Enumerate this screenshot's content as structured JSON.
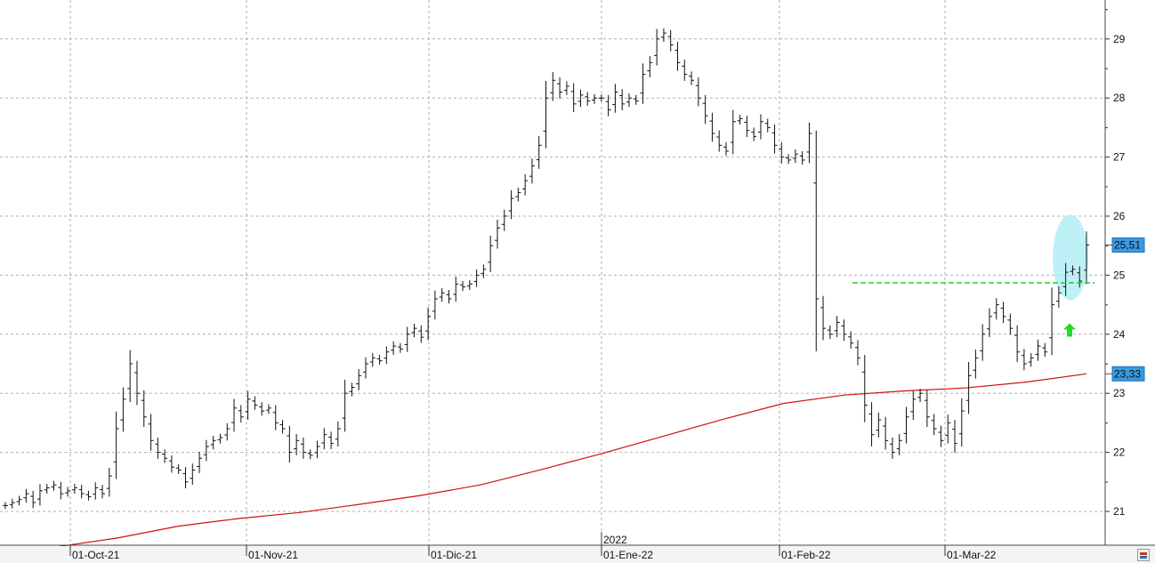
{
  "chart_data": {
    "type": "ohlc",
    "x_labels": [
      "01-Oct-21",
      "01-Nov-21",
      "01-Dic-21",
      "01-Ene-22",
      "01-Feb-22",
      "01-Mar-22"
    ],
    "year_label": "2022",
    "y_ticks": [
      "21",
      "22",
      "23",
      "24",
      "25",
      "26",
      "27",
      "28",
      "29"
    ],
    "ylim": [
      20.5,
      29.5
    ],
    "grid": true,
    "last_price": "25,51",
    "moving_average_price": "23,33",
    "resistance_level": 24.87,
    "colors": {
      "bars": "#111111",
      "moving_average": "#cc1111",
      "resistance": "#22cc22",
      "arrow": "#22dd22",
      "highlight": "#a8ecf4",
      "badge": "#3a9ae0",
      "grid": "#b0b0b0"
    },
    "moving_average": [
      20.4,
      20.55,
      20.75,
      20.88,
      20.98,
      21.12,
      21.27,
      21.45,
      21.71,
      21.98,
      22.27,
      22.56,
      22.83,
      22.97,
      23.04,
      23.09,
      23.19,
      23.33
    ],
    "close": [
      21.1,
      21.15,
      21.2,
      21.3,
      21.15,
      21.35,
      21.4,
      21.45,
      21.3,
      21.35,
      21.4,
      21.3,
      21.25,
      21.4,
      21.3,
      21.6,
      22.4,
      22.9,
      23.5,
      23.0,
      22.6,
      22.2,
      22.0,
      21.9,
      21.75,
      21.7,
      21.5,
      21.7,
      21.9,
      22.1,
      22.2,
      22.25,
      22.4,
      22.75,
      22.6,
      22.9,
      22.8,
      22.7,
      22.75,
      22.5,
      22.4,
      22.0,
      22.2,
      22.0,
      21.95,
      22.1,
      22.3,
      22.15,
      22.4,
      23.0,
      23.1,
      23.3,
      23.5,
      23.6,
      23.55,
      23.7,
      23.8,
      23.75,
      24.0,
      24.1,
      23.95,
      24.3,
      24.6,
      24.7,
      24.6,
      24.85,
      24.8,
      24.85,
      25.0,
      25.1,
      25.5,
      25.8,
      26.0,
      26.3,
      26.4,
      26.6,
      26.85,
      27.2,
      28.0,
      28.3,
      28.1,
      28.2,
      27.9,
      28.05,
      27.95,
      28.0,
      28.0,
      27.8,
      28.1,
      27.9,
      28.0,
      27.95,
      28.4,
      28.6,
      29.0,
      29.1,
      28.9,
      28.6,
      28.4,
      28.3,
      28.0,
      27.7,
      27.4,
      27.2,
      27.1,
      27.6,
      27.65,
      27.45,
      27.35,
      27.6,
      27.5,
      27.2,
      27.0,
      26.95,
      27.05,
      26.95,
      27.4,
      24.6,
      24.1,
      24.0,
      24.2,
      24.0,
      23.85,
      23.6,
      22.8,
      22.3,
      22.55,
      22.2,
      22.0,
      22.2,
      22.6,
      22.9,
      23.0,
      22.6,
      22.4,
      22.2,
      22.5,
      22.15,
      22.7,
      23.3,
      23.6,
      24.0,
      24.3,
      24.5,
      24.3,
      24.1,
      23.7,
      23.5,
      23.6,
      23.8,
      23.7,
      24.5,
      24.7,
      25.05,
      25.1,
      24.9,
      25.51
    ]
  }
}
